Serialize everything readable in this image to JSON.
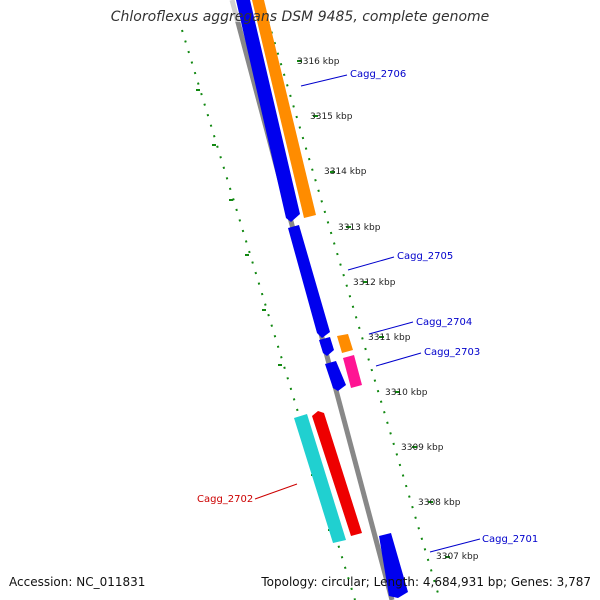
{
  "header": {
    "title": "Chloroflexus aggregans DSM 9485, complete genome"
  },
  "footer": {
    "accession": "Accession: NC_011831",
    "info": "Topology: circular; Length: 4,684,931 bp; Genes: 3,787"
  },
  "colors": {
    "backbone": "#888888",
    "tick_green": "#118811",
    "gene_blue": "#0000ee",
    "gene_orange": "#ff8c00",
    "gene_pink": "#ff1493",
    "gene_cyan": "#20d0d0",
    "gene_red": "#ee0000",
    "label_blue": "#0000cc",
    "label_red": "#cc0000"
  },
  "scale_labels": [
    "3316 kbp",
    "3315 kbp",
    "3314 kbp",
    "3313 kbp",
    "3312 kbp",
    "3311 kbp",
    "3310 kbp",
    "3309 kbp",
    "3308 kbp",
    "3307 kbp"
  ],
  "gene_labels": [
    {
      "name": "Cagg_2706",
      "color": "blue"
    },
    {
      "name": "Cagg_2705",
      "color": "blue"
    },
    {
      "name": "Cagg_2704",
      "color": "blue"
    },
    {
      "name": "Cagg_2703",
      "color": "blue"
    },
    {
      "name": "Cagg_2702",
      "color": "red"
    },
    {
      "name": "Cagg_2701",
      "color": "blue"
    }
  ]
}
